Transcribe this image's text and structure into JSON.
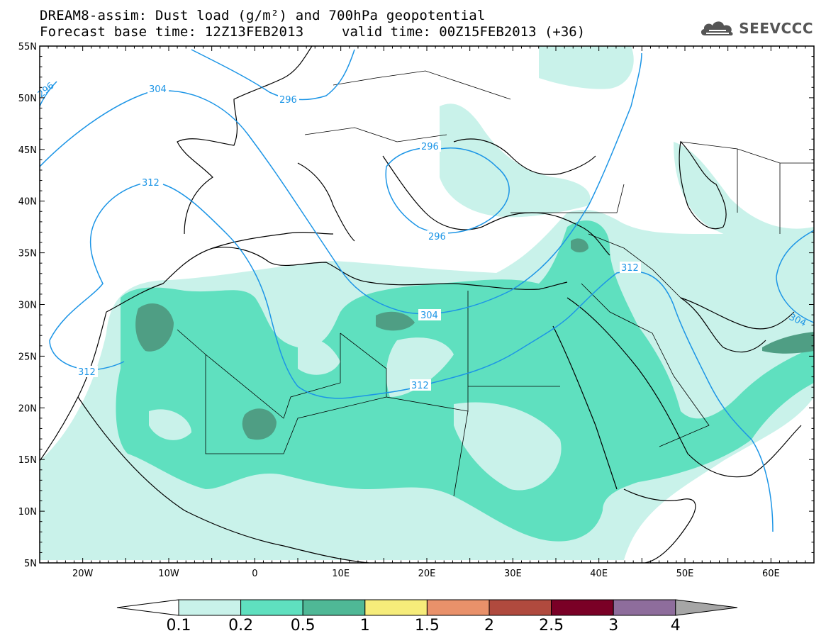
{
  "title_line1": "DREAM8-assim: Dust load (g/m²) and 700hPa geopotential",
  "title_line2": "Forecast base time: 12Z13FEB2013",
  "valid_time": "valid time: 00Z15FEB2013 (+36)",
  "logo_text": "SEEVCCC",
  "lat_labels": [
    "55N",
    "50N",
    "45N",
    "40N",
    "35N",
    "30N",
    "25N",
    "20N",
    "15N",
    "10N",
    "5N"
  ],
  "lon_labels": [
    "20W",
    "10W",
    "0",
    "10E",
    "20E",
    "30E",
    "40E",
    "50E",
    "60E"
  ],
  "contour_labels": {
    "c296a": "296",
    "c296b": "296",
    "c296c": "296",
    "c296d": "296",
    "c304a": "304",
    "c304b": "304",
    "c304c": "304",
    "c312a": "312",
    "c312b": "312",
    "c312c": "312",
    "c312d": "312"
  },
  "colorbar": {
    "ticks": [
      "0.1",
      "0.2",
      "0.5",
      "1",
      "1.5",
      "2",
      "2.5",
      "3",
      "4"
    ],
    "colors": [
      "#c9f2ea",
      "#5fe0bf",
      "#4fb896",
      "#f6ec7a",
      "#e9916a",
      "#b04a3e",
      "#7a0026",
      "#8e6d9c"
    ],
    "below_color": "#ffffff",
    "above_color": "#a6a6a6"
  },
  "legend_colors": {
    "light": "#c9f2ea",
    "medium": "#5fe0bf",
    "dark": "#4f9e84",
    "contour": "#1c95e6",
    "coast": "#000000"
  }
}
